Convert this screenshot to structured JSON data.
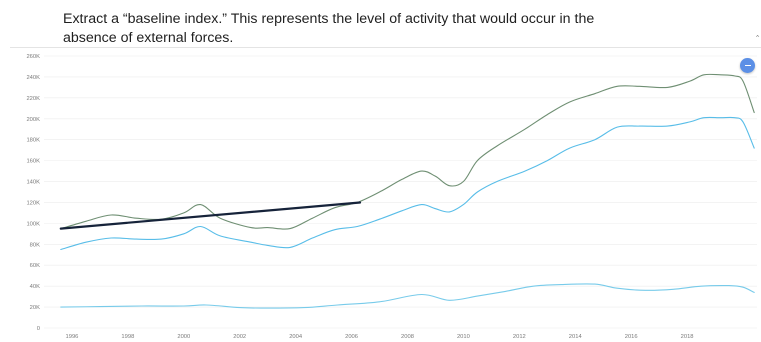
{
  "caption": {
    "text": "Extract a “baseline index.” This represents the level of activity that would occur in the\nabsence of external forces."
  },
  "controls": {
    "fab_icon": "minus-icon",
    "corner_icon": "chevron-icon",
    "corner_glyph": "‹"
  },
  "colors": {
    "series_top": "#6f8f73",
    "series_mid": "#58bde8",
    "series_low": "#78cbea",
    "baseline": "#16233a",
    "grid": "#ececec"
  },
  "chart_data": {
    "type": "line",
    "xlim": [
      1995,
      2020.5
    ],
    "ylim": [
      0,
      260000
    ],
    "x_ticks": [
      1996,
      1998,
      2000,
      2002,
      2004,
      2006,
      2008,
      2010,
      2012,
      2014,
      2016,
      2018
    ],
    "y_ticks": [
      {
        "value": 0,
        "label": "0"
      },
      {
        "value": 20000,
        "label": "20K"
      },
      {
        "value": 40000,
        "label": "40K"
      },
      {
        "value": 60000,
        "label": "60K"
      },
      {
        "value": 80000,
        "label": "80K"
      },
      {
        "value": 100000,
        "label": "100K"
      },
      {
        "value": 120000,
        "label": "120K"
      },
      {
        "value": 140000,
        "label": "140K"
      },
      {
        "value": 160000,
        "label": "160K"
      },
      {
        "value": 180000,
        "label": "180K"
      },
      {
        "value": 200000,
        "label": "200K"
      },
      {
        "value": 220000,
        "label": "220K"
      },
      {
        "value": 240000,
        "label": "240K"
      },
      {
        "value": 260000,
        "label": "260K"
      }
    ],
    "grid": true,
    "series": [
      {
        "key": "top",
        "x": [
          1995.6,
          1996.5,
          1997.4,
          1998.3,
          1999.2,
          2000.0,
          2000.6,
          2001.3,
          2002.4,
          2003.0,
          2003.8,
          2004.6,
          2005.4,
          2006.2,
          2007.0,
          2007.8,
          2008.5,
          2009.0,
          2009.5,
          2010.0,
          2010.5,
          2011.2,
          2012.2,
          2013.0,
          2013.8,
          2014.7,
          2015.5,
          2016.3,
          2017.3,
          2018.1,
          2018.6,
          2019.2,
          2019.7,
          2020.0,
          2020.4
        ],
        "y": [
          95000,
          102000,
          108000,
          105000,
          104000,
          110000,
          118000,
          105000,
          96000,
          96000,
          95000,
          105000,
          115000,
          120000,
          130000,
          142000,
          150000,
          145000,
          136000,
          140000,
          160000,
          174000,
          190000,
          204000,
          216000,
          224000,
          231000,
          231000,
          230000,
          236000,
          242000,
          242000,
          241000,
          236000,
          206000
        ]
      },
      {
        "key": "mid",
        "x": [
          1995.6,
          1996.5,
          1997.4,
          1998.3,
          1999.2,
          2000.0,
          2000.6,
          2001.3,
          2002.4,
          2003.0,
          2003.8,
          2004.6,
          2005.4,
          2006.2,
          2007.0,
          2007.8,
          2008.5,
          2009.0,
          2009.5,
          2010.0,
          2010.5,
          2011.2,
          2012.2,
          2013.0,
          2013.8,
          2014.7,
          2015.5,
          2016.3,
          2017.3,
          2018.1,
          2018.6,
          2019.2,
          2019.7,
          2020.0,
          2020.4
        ],
        "y": [
          75000,
          82000,
          86000,
          85000,
          85000,
          90000,
          97000,
          88000,
          82000,
          79000,
          77000,
          86000,
          94000,
          97000,
          104000,
          112000,
          118000,
          114000,
          111000,
          118000,
          130000,
          140000,
          150000,
          160000,
          172000,
          180000,
          192000,
          193000,
          193000,
          197000,
          201000,
          201000,
          201000,
          197000,
          172000
        ]
      },
      {
        "key": "low",
        "x": [
          1995.6,
          1997.0,
          1998.5,
          2000.0,
          2000.8,
          2002.0,
          2003.0,
          2004.3,
          2005.5,
          2007.0,
          2008.5,
          2009.5,
          2010.5,
          2011.5,
          2012.5,
          2013.5,
          2014.7,
          2015.5,
          2016.5,
          2017.5,
          2018.5,
          2019.5,
          2020.0,
          2020.4
        ],
        "y": [
          20000,
          20500,
          21000,
          21000,
          22000,
          19500,
          19000,
          19500,
          22000,
          25000,
          32000,
          26500,
          30500,
          35000,
          40000,
          41500,
          42000,
          38000,
          36000,
          37000,
          40000,
          40500,
          39000,
          34000
        ]
      },
      {
        "key": "baseline",
        "x": [
          1995.6,
          2006.3
        ],
        "y": [
          95000,
          120000
        ]
      }
    ]
  }
}
